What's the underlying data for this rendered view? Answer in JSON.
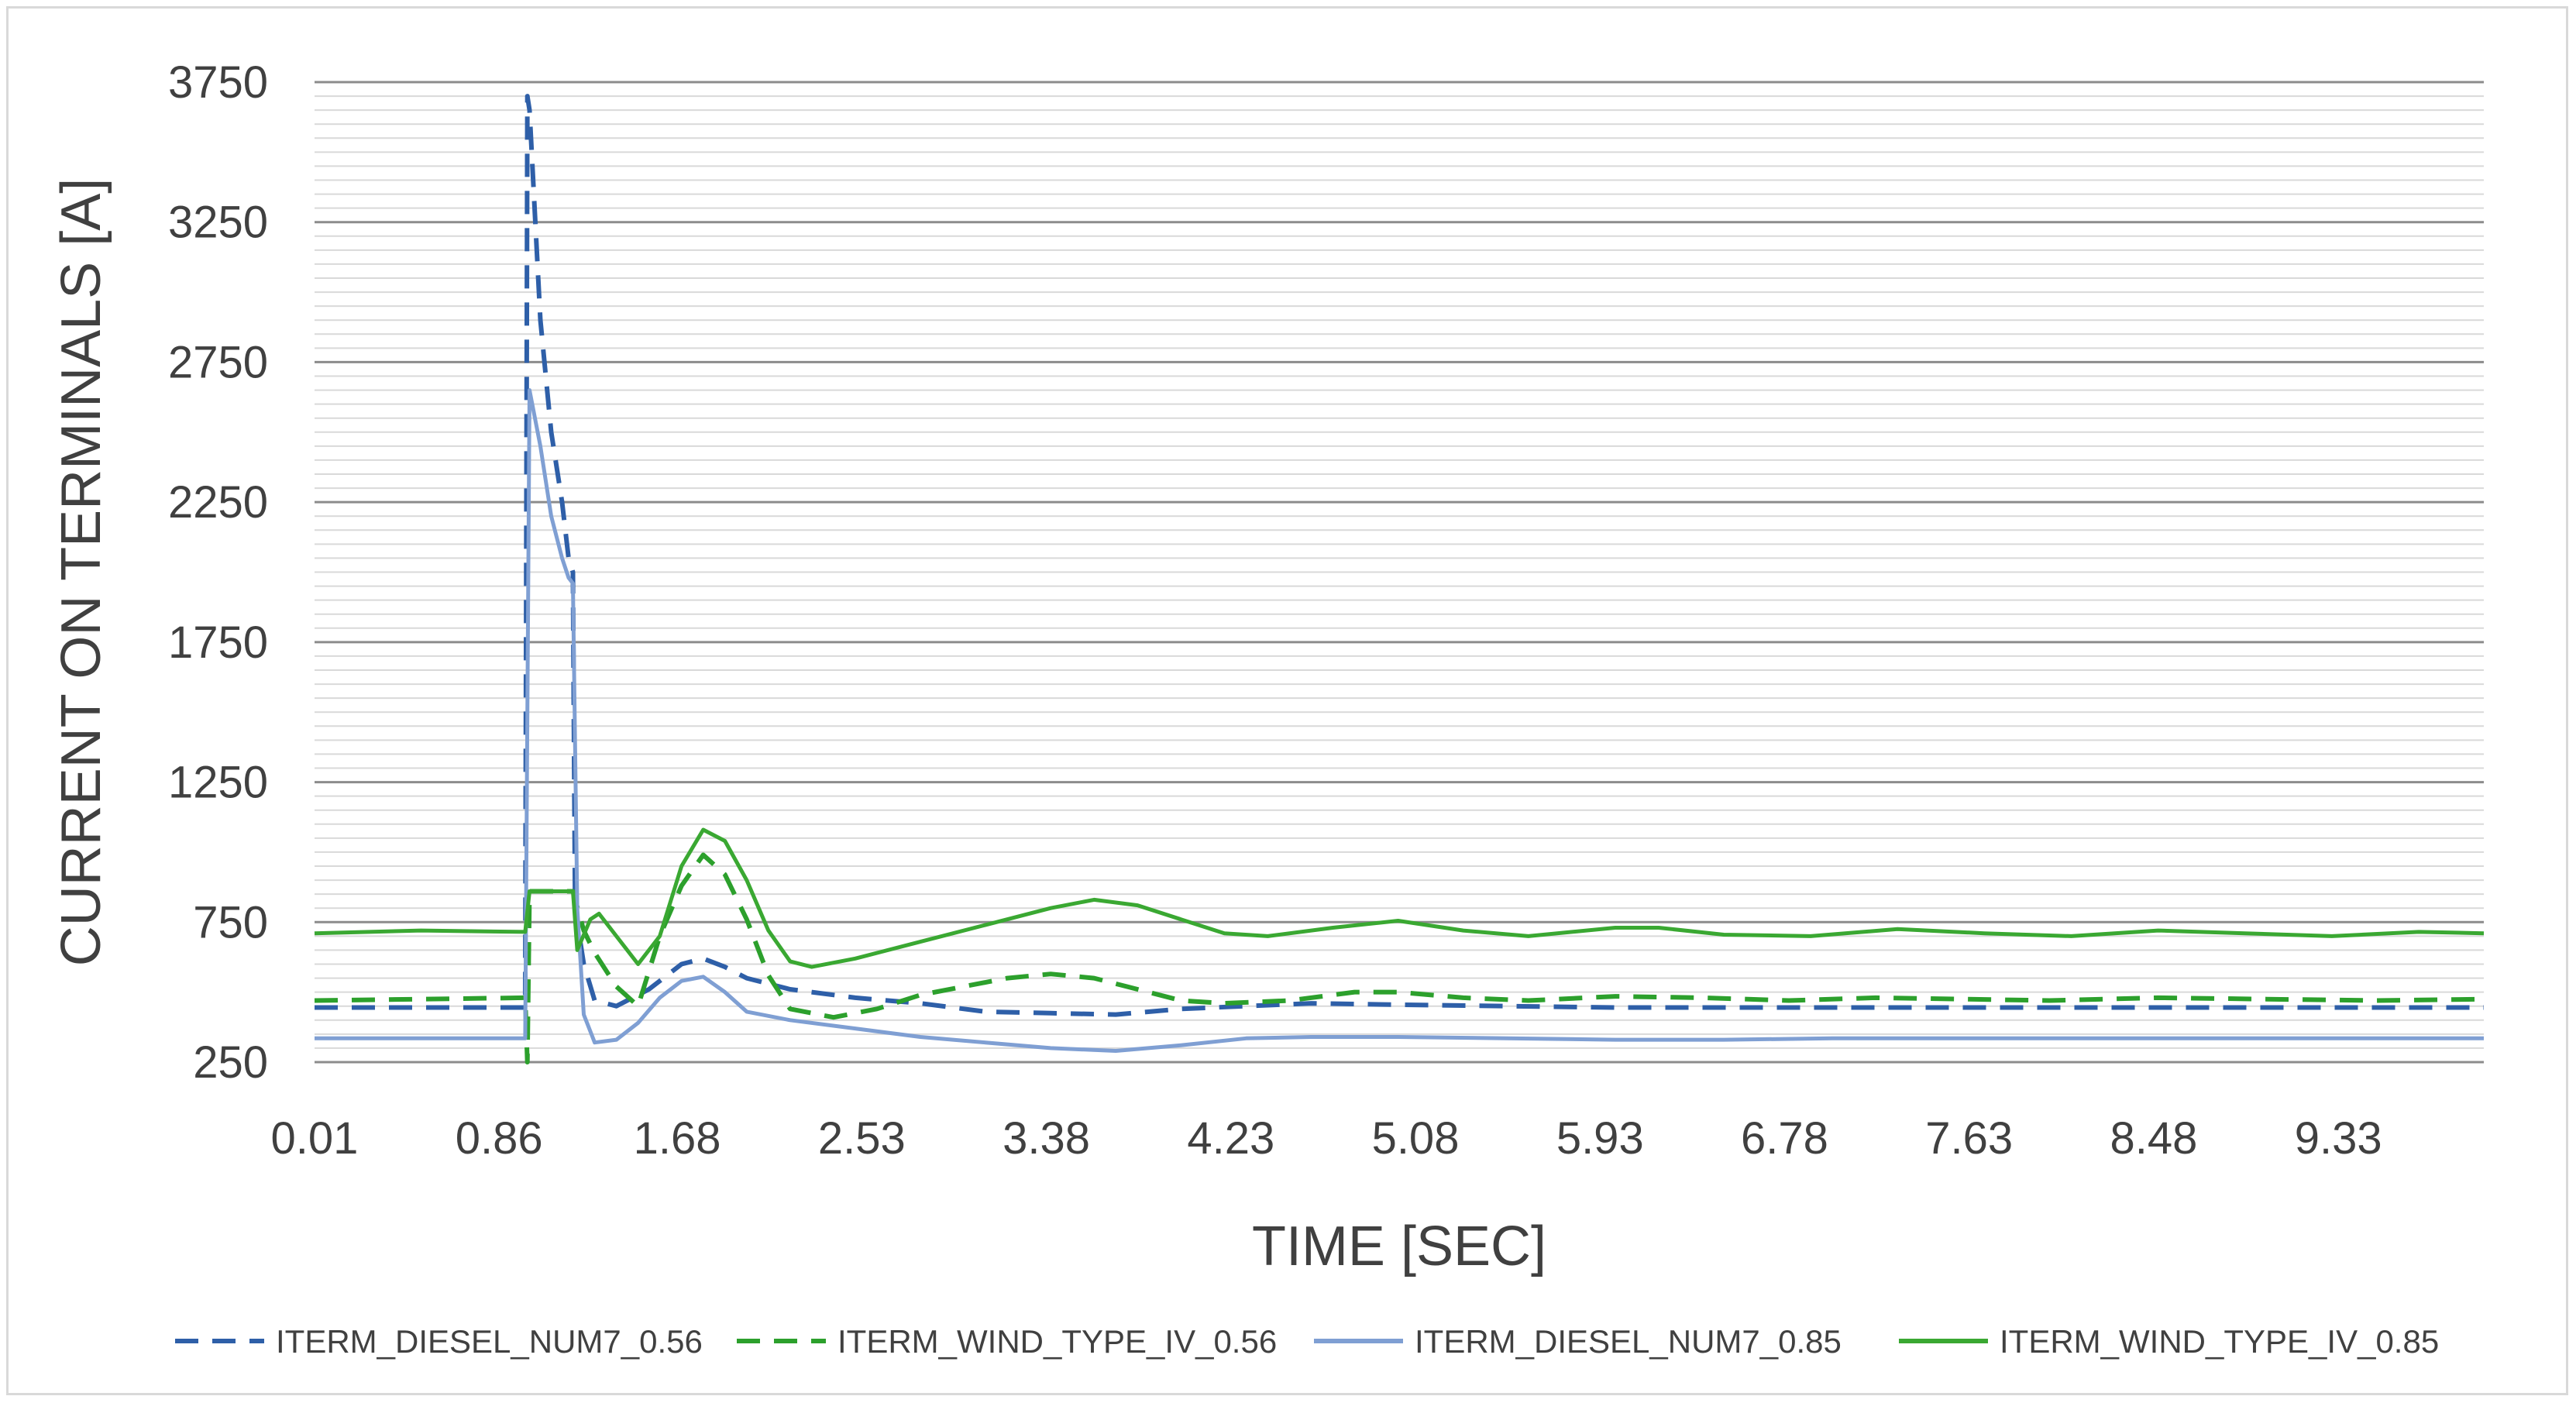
{
  "chart_data": {
    "type": "line",
    "title": "",
    "xlabel": "TIME [SEC]",
    "ylabel": "CURRENT ON TERMINALS [A]",
    "xlim": [
      0.01,
      10.0
    ],
    "ylim": [
      250,
      3750
    ],
    "x_ticks": [
      "0.01",
      "0.86",
      "1.68",
      "2.53",
      "3.38",
      "4.23",
      "5.08",
      "5.93",
      "6.78",
      "7.63",
      "8.48",
      "9.33"
    ],
    "x_tick_values": [
      0.01,
      0.86,
      1.68,
      2.53,
      3.38,
      4.23,
      5.08,
      5.93,
      6.78,
      7.63,
      8.48,
      9.33
    ],
    "y_ticks": [
      250,
      750,
      1250,
      1750,
      2250,
      2750,
      3250,
      3750
    ],
    "grid": "major and minor horizontal",
    "legend_position": "bottom",
    "series": [
      {
        "name": "ITERM_DIESEL_NUM7_0.56",
        "color": "#2E5FA8",
        "dash": "dashed",
        "points": [
          [
            0.01,
            445
          ],
          [
            0.98,
            445
          ],
          [
            0.99,
            3700
          ],
          [
            1.0,
            3650
          ],
          [
            1.05,
            2900
          ],
          [
            1.1,
            2500
          ],
          [
            1.15,
            2250
          ],
          [
            1.18,
            2050
          ],
          [
            1.2,
            2000
          ],
          [
            1.21,
            800
          ],
          [
            1.25,
            600
          ],
          [
            1.3,
            470
          ],
          [
            1.4,
            450
          ],
          [
            1.55,
            510
          ],
          [
            1.7,
            600
          ],
          [
            1.8,
            620
          ],
          [
            1.9,
            590
          ],
          [
            2.0,
            550
          ],
          [
            2.2,
            510
          ],
          [
            2.5,
            480
          ],
          [
            2.8,
            460
          ],
          [
            3.1,
            430
          ],
          [
            3.4,
            425
          ],
          [
            3.7,
            420
          ],
          [
            4.0,
            440
          ],
          [
            4.3,
            450
          ],
          [
            4.6,
            460
          ],
          [
            5.0,
            455
          ],
          [
            5.5,
            450
          ],
          [
            6.0,
            445
          ],
          [
            6.5,
            445
          ],
          [
            7.0,
            445
          ],
          [
            8.0,
            445
          ],
          [
            9.0,
            445
          ],
          [
            10.0,
            445
          ]
        ]
      },
      {
        "name": "ITERM_WIND_TYPE_IV_0.56",
        "color": "#2CA02C",
        "dash": "dashed",
        "points": [
          [
            0.01,
            470
          ],
          [
            0.98,
            480
          ],
          [
            0.99,
            250
          ],
          [
            1.0,
            860
          ],
          [
            1.2,
            860
          ],
          [
            1.25,
            720
          ],
          [
            1.3,
            640
          ],
          [
            1.4,
            520
          ],
          [
            1.5,
            450
          ],
          [
            1.6,
            700
          ],
          [
            1.7,
            880
          ],
          [
            1.8,
            990
          ],
          [
            1.9,
            920
          ],
          [
            2.0,
            760
          ],
          [
            2.1,
            560
          ],
          [
            2.2,
            440
          ],
          [
            2.4,
            410
          ],
          [
            2.6,
            440
          ],
          [
            2.8,
            490
          ],
          [
            3.0,
            520
          ],
          [
            3.2,
            550
          ],
          [
            3.4,
            565
          ],
          [
            3.6,
            550
          ],
          [
            3.8,
            510
          ],
          [
            4.0,
            470
          ],
          [
            4.2,
            460
          ],
          [
            4.5,
            470
          ],
          [
            4.8,
            500
          ],
          [
            5.0,
            500
          ],
          [
            5.3,
            480
          ],
          [
            5.6,
            470
          ],
          [
            6.0,
            485
          ],
          [
            6.4,
            480
          ],
          [
            6.8,
            470
          ],
          [
            7.2,
            480
          ],
          [
            7.6,
            475
          ],
          [
            8.0,
            470
          ],
          [
            8.5,
            480
          ],
          [
            9.0,
            475
          ],
          [
            9.5,
            470
          ],
          [
            10.0,
            475
          ]
        ]
      },
      {
        "name": "ITERM_DIESEL_NUM7_0.85",
        "color": "#7F9FD3",
        "dash": "solid",
        "points": [
          [
            0.01,
            335
          ],
          [
            0.98,
            335
          ],
          [
            1.0,
            2650
          ],
          [
            1.05,
            2450
          ],
          [
            1.1,
            2200
          ],
          [
            1.15,
            2050
          ],
          [
            1.18,
            1980
          ],
          [
            1.2,
            1960
          ],
          [
            1.22,
            800
          ],
          [
            1.25,
            420
          ],
          [
            1.3,
            320
          ],
          [
            1.4,
            330
          ],
          [
            1.5,
            390
          ],
          [
            1.6,
            480
          ],
          [
            1.7,
            540
          ],
          [
            1.8,
            555
          ],
          [
            1.9,
            500
          ],
          [
            2.0,
            430
          ],
          [
            2.2,
            400
          ],
          [
            2.5,
            370
          ],
          [
            2.8,
            340
          ],
          [
            3.1,
            320
          ],
          [
            3.4,
            300
          ],
          [
            3.7,
            290
          ],
          [
            4.0,
            310
          ],
          [
            4.3,
            335
          ],
          [
            4.6,
            340
          ],
          [
            5.0,
            340
          ],
          [
            5.5,
            335
          ],
          [
            6.0,
            330
          ],
          [
            6.5,
            330
          ],
          [
            7.0,
            335
          ],
          [
            8.0,
            335
          ],
          [
            9.0,
            335
          ],
          [
            10.0,
            335
          ]
        ]
      },
      {
        "name": "ITERM_WIND_TYPE_IV_0.85",
        "color": "#3AA832",
        "dash": "solid",
        "points": [
          [
            0.01,
            710
          ],
          [
            0.5,
            720
          ],
          [
            0.98,
            715
          ],
          [
            1.0,
            860
          ],
          [
            1.2,
            860
          ],
          [
            1.22,
            650
          ],
          [
            1.28,
            760
          ],
          [
            1.32,
            780
          ],
          [
            1.4,
            700
          ],
          [
            1.5,
            600
          ],
          [
            1.6,
            700
          ],
          [
            1.7,
            950
          ],
          [
            1.8,
            1080
          ],
          [
            1.9,
            1040
          ],
          [
            2.0,
            900
          ],
          [
            2.1,
            720
          ],
          [
            2.2,
            610
          ],
          [
            2.3,
            590
          ],
          [
            2.5,
            620
          ],
          [
            2.8,
            680
          ],
          [
            3.1,
            740
          ],
          [
            3.4,
            800
          ],
          [
            3.6,
            830
          ],
          [
            3.8,
            810
          ],
          [
            4.0,
            760
          ],
          [
            4.2,
            710
          ],
          [
            4.4,
            700
          ],
          [
            4.7,
            730
          ],
          [
            5.0,
            755
          ],
          [
            5.3,
            720
          ],
          [
            5.6,
            700
          ],
          [
            6.0,
            730
          ],
          [
            6.2,
            730
          ],
          [
            6.5,
            705
          ],
          [
            6.9,
            700
          ],
          [
            7.3,
            725
          ],
          [
            7.7,
            710
          ],
          [
            8.1,
            700
          ],
          [
            8.5,
            720
          ],
          [
            8.9,
            710
          ],
          [
            9.3,
            700
          ],
          [
            9.7,
            715
          ],
          [
            10.0,
            710
          ]
        ]
      }
    ]
  }
}
